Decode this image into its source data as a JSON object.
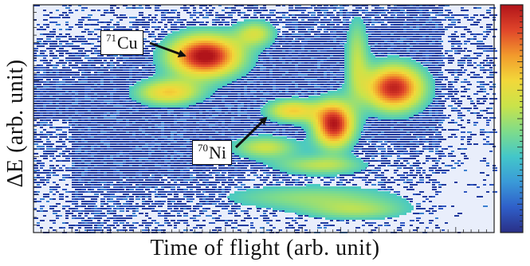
{
  "chart_data": {
    "type": "heatmap",
    "xlabel": "Time of flight (arb. unit)",
    "ylabel": "ΔE (arb. unit)",
    "colorbar": [
      "#2a2f86",
      "#2f5fc9",
      "#3a9ad8",
      "#43c7c9",
      "#7fdc8a",
      "#c9e34a",
      "#f2d83a",
      "#f29a2c",
      "#e0452a",
      "#b1141a"
    ],
    "background_noise": "#1f3a9e",
    "annotations": [
      {
        "mass": "71",
        "element": "Cu"
      },
      {
        "mass": "70",
        "element": "Ni"
      }
    ],
    "blobs": [
      {
        "x": 0.37,
        "y": 0.78,
        "sx": 0.055,
        "sy": 0.065,
        "intensity": 1.0
      },
      {
        "x": 0.78,
        "y": 0.64,
        "sx": 0.045,
        "sy": 0.07,
        "intensity": 0.92
      },
      {
        "x": 0.65,
        "y": 0.48,
        "sx": 0.03,
        "sy": 0.07,
        "intensity": 0.95
      },
      {
        "x": 0.29,
        "y": 0.62,
        "sx": 0.05,
        "sy": 0.04,
        "intensity": 0.55
      },
      {
        "x": 0.56,
        "y": 0.54,
        "sx": 0.04,
        "sy": 0.035,
        "intensity": 0.55
      },
      {
        "x": 0.48,
        "y": 0.88,
        "sx": 0.03,
        "sy": 0.04,
        "intensity": 0.4
      },
      {
        "x": 0.5,
        "y": 0.38,
        "sx": 0.05,
        "sy": 0.035,
        "intensity": 0.4
      },
      {
        "x": 0.62,
        "y": 0.3,
        "sx": 0.07,
        "sy": 0.03,
        "intensity": 0.35
      },
      {
        "x": 0.7,
        "y": 0.78,
        "sx": 0.018,
        "sy": 0.12,
        "intensity": 0.35
      },
      {
        "x": 0.6,
        "y": 0.16,
        "sx": 0.14,
        "sy": 0.04,
        "intensity": 0.28
      },
      {
        "x": 0.7,
        "y": 0.1,
        "sx": 0.08,
        "sy": 0.03,
        "intensity": 0.28
      }
    ]
  }
}
